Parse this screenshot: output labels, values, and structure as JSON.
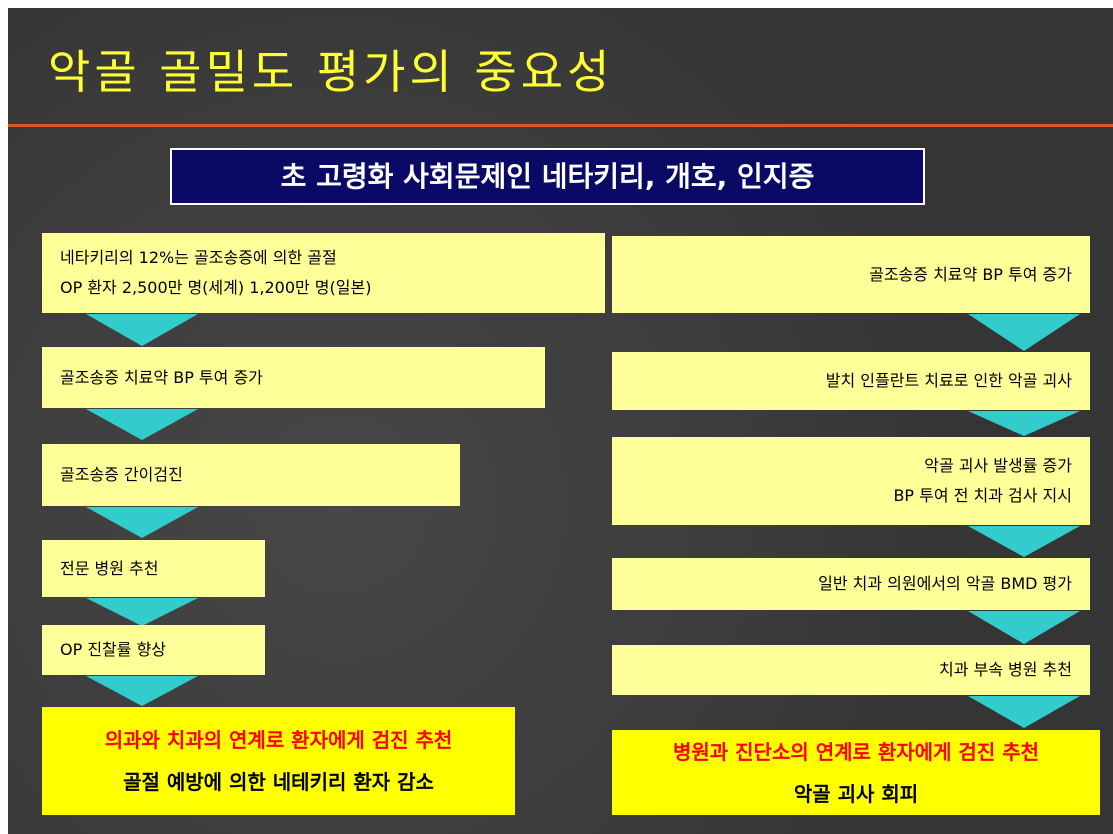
{
  "title": "악골 골밀도 평가의 중요성",
  "subtitle": "초 고령화 사회문제인 네타키리, 개호, 인지증",
  "left": {
    "steps": [
      [
        "네타키리의 12%는 골조송증에 의한 골절",
        "OP 환자 2,500만 명(세계) 1,200만 명(일본)"
      ],
      [
        "골조송증 치료약 BP 투여 증가"
      ],
      [
        "골조송증 간이검진"
      ],
      [
        "전문 병원 추천"
      ],
      [
        "OP 진찰률 향상"
      ]
    ],
    "result": [
      "의과와 치과의 연계로 환자에게 검진 추천",
      "골절 예방에 의한 네테키리 환자 감소"
    ]
  },
  "right": {
    "steps": [
      [
        "골조송증 치료약 BP 투여 증가"
      ],
      [
        "발치 인플란트 치료로 인한 악골 괴사"
      ],
      [
        "악골 괴사 발생률 증가",
        "BP 투여 전 치과 검사 지시"
      ],
      [
        "일반 치과 의원에서의 악골 BMD 평가"
      ],
      [
        "치과 부속 병원 추천"
      ]
    ],
    "result": [
      "병원과 진단소의 연계로 환자에게 검진 추천",
      "악골 괴사 회피"
    ]
  }
}
